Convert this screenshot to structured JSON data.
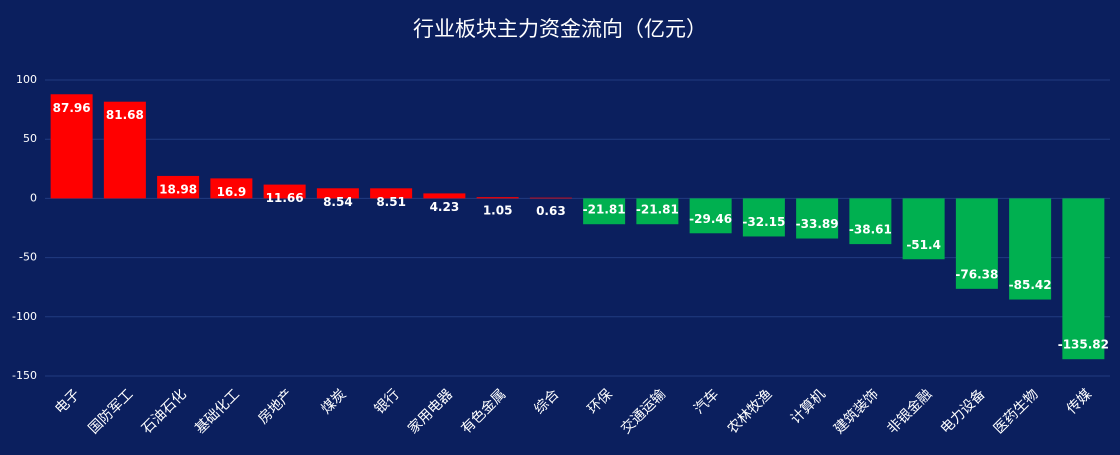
{
  "chart_data": {
    "type": "bar",
    "title": "行业板块主力资金流向（亿元）",
    "categories": [
      "电子",
      "国防军工",
      "石油石化",
      "基础化工",
      "房地产",
      "煤炭",
      "银行",
      "家用电器",
      "有色金属",
      "综合",
      "环保",
      "交通运输",
      "汽车",
      "农林牧渔",
      "计算机",
      "建筑装饰",
      "非银金融",
      "电力设备",
      "医药生物",
      "传媒"
    ],
    "values": [
      87.96,
      81.68,
      18.98,
      16.9,
      11.66,
      8.54,
      8.51,
      4.23,
      1.05,
      0.63,
      -21.81,
      -21.81,
      -29.46,
      -32.15,
      -33.89,
      -38.61,
      -51.4,
      -76.38,
      -85.42,
      -135.82
    ],
    "positive_color": "#ff0000",
    "negative_color": "#00b050",
    "ylim": [
      -150,
      100
    ],
    "yticks": [
      -150,
      -100,
      -50,
      0,
      50,
      100
    ],
    "grid": true
  }
}
